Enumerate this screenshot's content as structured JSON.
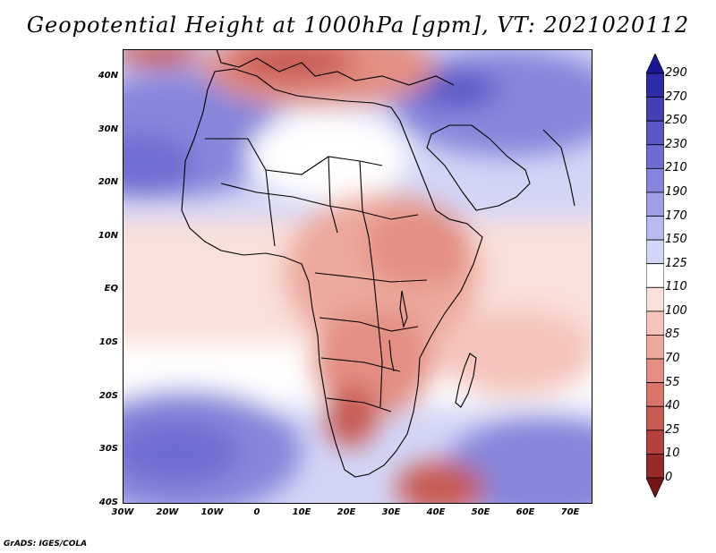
{
  "title": "Geopotential Height at 1000hPa [gpm], VT: 2021020112",
  "credit": "GrADS: IGES/COLA",
  "map": {
    "lat_labels": [
      "40N",
      "30N",
      "20N",
      "10N",
      "EQ",
      "10S",
      "20S",
      "30S",
      "40S"
    ],
    "lon_labels": [
      "30W",
      "20W",
      "10W",
      "0",
      "10E",
      "20E",
      "30E",
      "40E",
      "50E",
      "60E",
      "70E"
    ],
    "lat_range": [
      -40,
      45
    ],
    "lon_range": [
      -30,
      75
    ]
  },
  "colorbar": {
    "levels": [
      "290",
      "270",
      "250",
      "230",
      "210",
      "190",
      "170",
      "150",
      "125",
      "110",
      "100",
      "85",
      "70",
      "55",
      "40",
      "25",
      "10",
      "0"
    ],
    "colors": [
      "#1b1898",
      "#2f2ca8",
      "#4441b6",
      "#5957c4",
      "#6e6dd0",
      "#8686dc",
      "#9e9fe6",
      "#b8baef",
      "#d3d5f7",
      "#ffffff",
      "#fae0da",
      "#f5c5bc",
      "#eda99d",
      "#e48f83",
      "#d8746a",
      "#c85a52",
      "#b4413c",
      "#9a2a28",
      "#7a1515"
    ]
  }
}
